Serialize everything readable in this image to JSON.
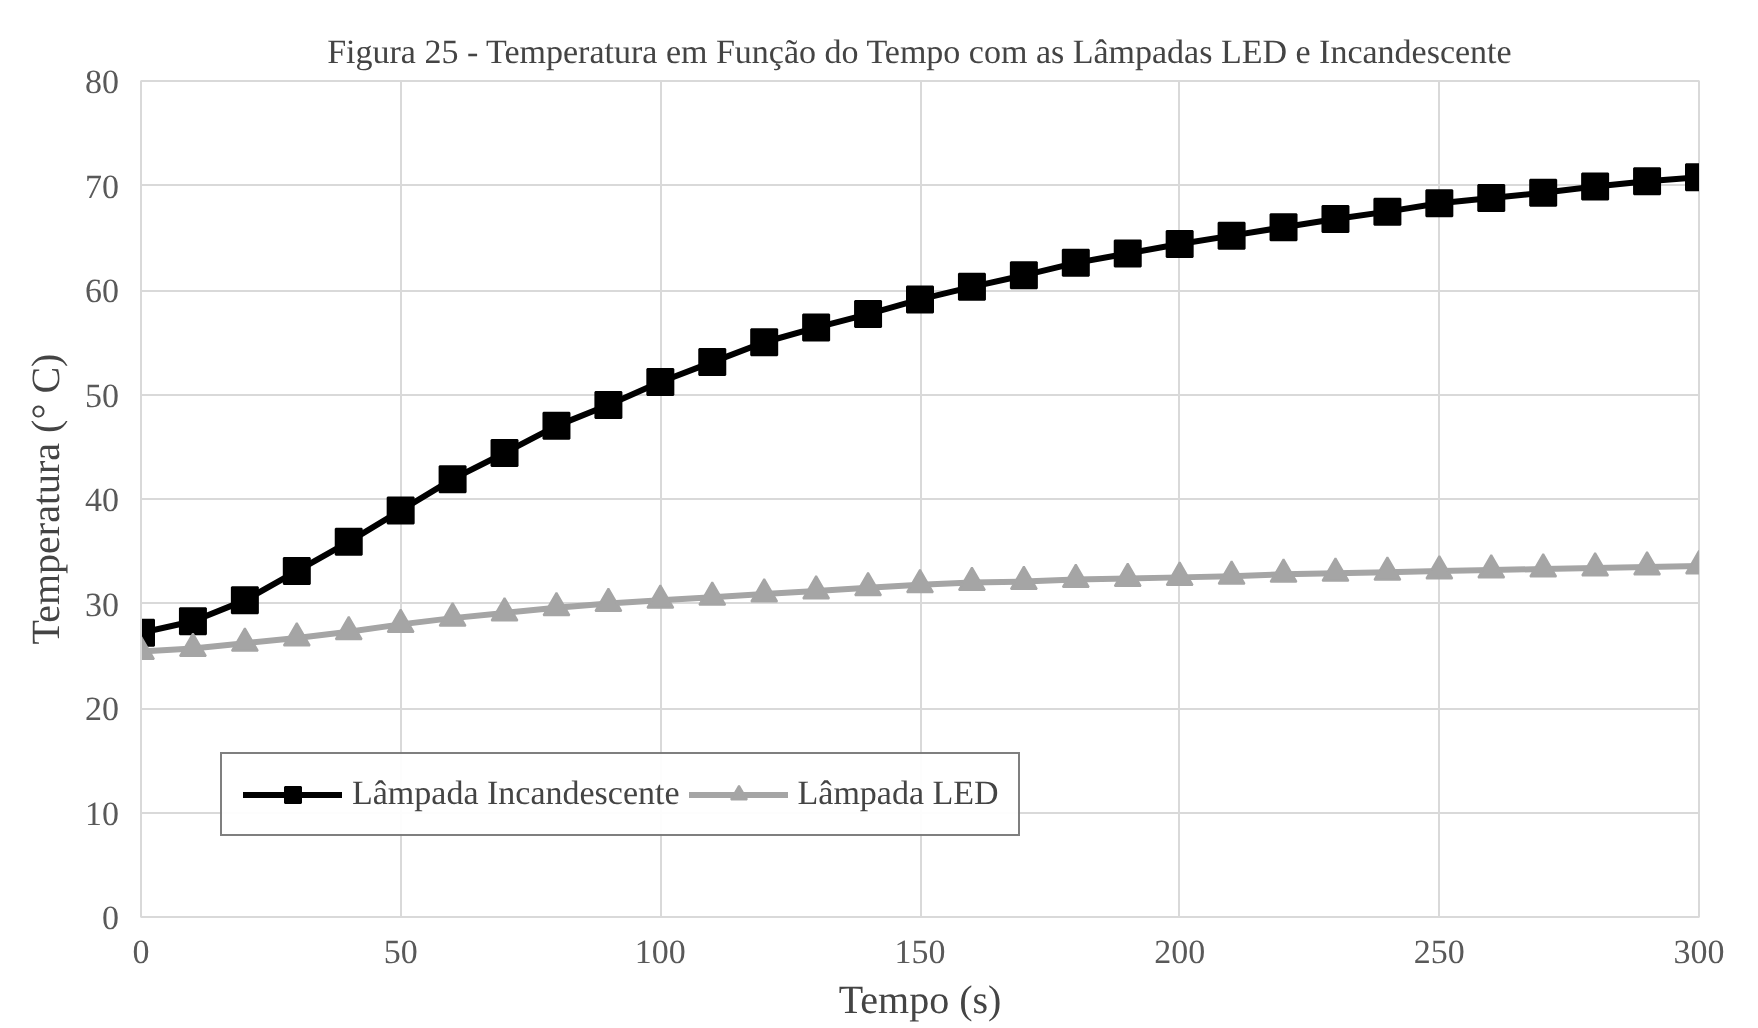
{
  "chart_data": {
    "type": "line",
    "title": "Figura 25 - Temperatura em Função do Tempo com as Lâmpadas LED e Incandescente",
    "xlabel": "Tempo (s)",
    "ylabel": "Temperatura (° C)",
    "x": [
      0,
      10,
      20,
      30,
      40,
      50,
      60,
      70,
      80,
      90,
      100,
      110,
      120,
      130,
      140,
      150,
      160,
      170,
      180,
      190,
      200,
      210,
      220,
      230,
      240,
      250,
      260,
      270,
      280,
      290,
      300
    ],
    "series": [
      {
        "name": "Lâmpada Incandescente",
        "color": "#000000",
        "marker": "square",
        "values": [
          27.2,
          28.3,
          30.3,
          33.1,
          35.9,
          38.9,
          41.9,
          44.4,
          47,
          49,
          51.2,
          53.1,
          55,
          56.4,
          57.7,
          59.1,
          60.3,
          61.4,
          62.6,
          63.5,
          64.4,
          65.2,
          66,
          66.8,
          67.5,
          68.3,
          68.8,
          69.3,
          69.9,
          70.4,
          70.8
        ]
      },
      {
        "name": "Lâmpada LED",
        "color": "#a5a5a5",
        "marker": "triangle",
        "values": [
          25.4,
          25.7,
          26.2,
          26.7,
          27.3,
          28,
          28.6,
          29.1,
          29.6,
          30,
          30.3,
          30.6,
          30.9,
          31.2,
          31.5,
          31.8,
          32,
          32.1,
          32.3,
          32.4,
          32.5,
          32.6,
          32.8,
          32.9,
          33,
          33.1,
          33.2,
          33.3,
          33.4,
          33.5,
          33.6
        ]
      }
    ],
    "xlim": [
      0,
      300
    ],
    "xticks": [
      0,
      50,
      100,
      150,
      200,
      250,
      300
    ],
    "ylim": [
      0,
      80
    ],
    "yticks": [
      0,
      10,
      20,
      30,
      40,
      50,
      60,
      70,
      80
    ],
    "grid": true,
    "legend": "bottom left"
  }
}
